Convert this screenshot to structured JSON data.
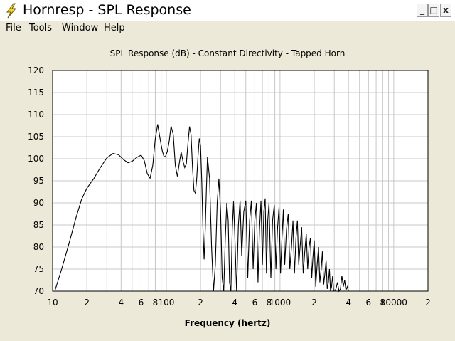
{
  "window": {
    "title": "Hornresp - SPL Response",
    "controls": {
      "minimize": "_",
      "maximize": "□",
      "close": "x"
    }
  },
  "menu": {
    "items": [
      "File",
      "Tools",
      "Window",
      "Help"
    ]
  },
  "chart_data": {
    "type": "line",
    "title": "SPL Response (dB) - Constant Directivity - Tapped Horn",
    "xlabel": "Frequency (hertz)",
    "ylabel": "",
    "xscale": "log",
    "xlim": [
      10,
      20000
    ],
    "ylim": [
      70,
      120
    ],
    "yticks": [
      70,
      75,
      80,
      85,
      90,
      95,
      100,
      105,
      110,
      115,
      120
    ],
    "xtick_labels": [
      {
        "x": 10,
        "label": "10"
      },
      {
        "x": 20,
        "label": "2"
      },
      {
        "x": 40,
        "label": "4"
      },
      {
        "x": 60,
        "label": "6"
      },
      {
        "x": 80,
        "label": "8"
      },
      {
        "x": 100,
        "label": "100"
      },
      {
        "x": 200,
        "label": "2"
      },
      {
        "x": 400,
        "label": "4"
      },
      {
        "x": 600,
        "label": "6"
      },
      {
        "x": 800,
        "label": "8"
      },
      {
        "x": 1000,
        "label": "1000"
      },
      {
        "x": 2000,
        "label": "2"
      },
      {
        "x": 4000,
        "label": "4"
      },
      {
        "x": 6000,
        "label": "6"
      },
      {
        "x": 8000,
        "label": "8"
      },
      {
        "x": 10000,
        "label": "10000"
      },
      {
        "x": 20000,
        "label": "2"
      }
    ],
    "grid": true,
    "series": [
      {
        "color": "#000000",
        "x": [
          10.5,
          12,
          14,
          16,
          18,
          20,
          23,
          26,
          30,
          34,
          38,
          42,
          46,
          50,
          55,
          60,
          64,
          68,
          72,
          76,
          80,
          84,
          88,
          92,
          95,
          98,
          102,
          106,
          110,
          115,
          120,
          125,
          130,
          135,
          140,
          145,
          150,
          155,
          160,
          165,
          170,
          175,
          180,
          185,
          190,
          195,
          200,
          205,
          210,
          215,
          220,
          225,
          230,
          240,
          250,
          260,
          270,
          280,
          290,
          300,
          310,
          320,
          330,
          340,
          350,
          360,
          370,
          380,
          390,
          400,
          415,
          430,
          445,
          460,
          480,
          500,
          520,
          540,
          560,
          580,
          600,
          620,
          640,
          660,
          680,
          700,
          720,
          740,
          760,
          780,
          800,
          830,
          860,
          890,
          920,
          950,
          980,
          1010,
          1040,
          1070,
          1100,
          1140,
          1180,
          1220,
          1260,
          1300,
          1340,
          1380,
          1420,
          1460,
          1500,
          1550,
          1600,
          1650,
          1700,
          1750,
          1800,
          1850,
          1900,
          1950,
          2000,
          2060,
          2120,
          2180,
          2240,
          2300,
          2360,
          2420,
          2480,
          2540,
          2600,
          2660,
          2720,
          2780,
          2840,
          2900,
          2960,
          3020,
          3100,
          3200,
          3300,
          3400,
          3500,
          3600,
          3700,
          3800,
          3900,
          4000
        ],
        "y": [
          70.2,
          75,
          81,
          86.5,
          90.8,
          93.3,
          95.5,
          97.8,
          100.2,
          101.2,
          100.9,
          99.8,
          99.1,
          99.4,
          100.3,
          100.8,
          99.6,
          96.6,
          95.6,
          98.5,
          104.5,
          107.8,
          104.6,
          101.8,
          100.6,
          100.4,
          101.6,
          104.0,
          107.4,
          105.5,
          98.5,
          96.0,
          99.0,
          101.5,
          99.5,
          98.0,
          98.8,
          103.5,
          107.3,
          105.5,
          98.0,
          92.8,
          92.2,
          95.5,
          100.5,
          104.6,
          103.0,
          95.0,
          84.0,
          77.2,
          84.0,
          93.0,
          100.4,
          95.5,
          80.0,
          70.0,
          76.0,
          90.0,
          95.5,
          88.0,
          73.0,
          70.0,
          82.0,
          90.0,
          86.0,
          72.0,
          70.0,
          84.0,
          90.3,
          83.0,
          70.0,
          85.0,
          90.5,
          78.0,
          88.0,
          90.5,
          73.0,
          86.0,
          90.5,
          75.0,
          86.0,
          90.0,
          72.0,
          84.0,
          90.5,
          76.0,
          88.0,
          91.0,
          74.0,
          86.0,
          90.0,
          73.0,
          86.0,
          89.5,
          75.0,
          84.0,
          89.0,
          74.0,
          82.0,
          88.5,
          76.0,
          84.0,
          87.5,
          75.0,
          80.0,
          86.0,
          74.0,
          82.0,
          86.0,
          76.0,
          80.0,
          84.5,
          74.0,
          79.0,
          83.0,
          75.0,
          80.0,
          82.0,
          73.0,
          78.0,
          81.5,
          71.0,
          76.0,
          80.0,
          72.0,
          75.0,
          79.0,
          71.5,
          74.0,
          77.0,
          70.5,
          72.0,
          75.0,
          70.0,
          71.0,
          73.5,
          70.0,
          70.0,
          70.5,
          72.0,
          70.0,
          70.5,
          73.5,
          71.0,
          72.5,
          70.2,
          71.0,
          70.0
        ]
      }
    ]
  }
}
